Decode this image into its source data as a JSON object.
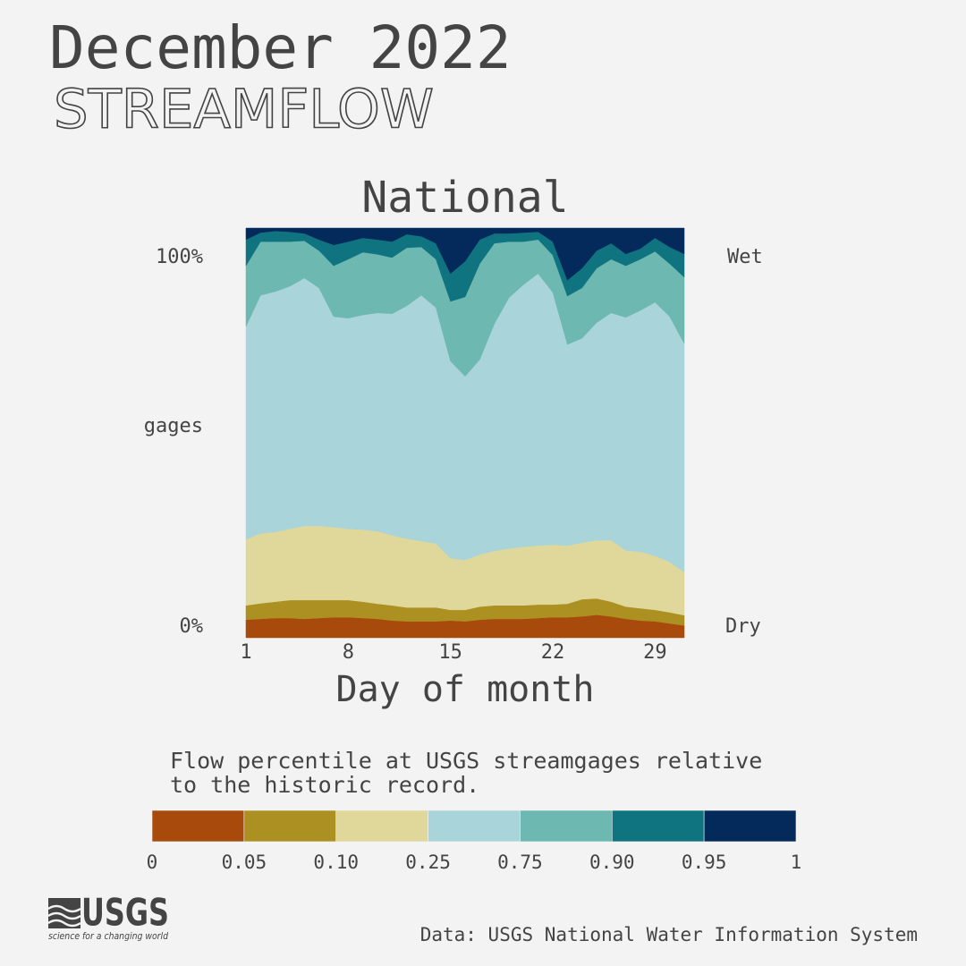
{
  "header": {
    "title": "December 2022",
    "subtitle": "STREAMFLOW"
  },
  "chart_data": {
    "type": "stacked_area",
    "title": "National",
    "x_label": "Day of month",
    "x": [
      1,
      2,
      3,
      4,
      5,
      6,
      7,
      8,
      9,
      10,
      11,
      12,
      13,
      14,
      15,
      16,
      17,
      18,
      19,
      20,
      21,
      22,
      23,
      24,
      25,
      26,
      27,
      28,
      29,
      30,
      31
    ],
    "xlim": [
      1,
      31
    ],
    "xticks": [
      1,
      8,
      15,
      22,
      29
    ],
    "ylim": [
      0,
      100
    ],
    "side_labels": {
      "left": [
        "100%",
        "gages",
        "0%"
      ],
      "right": [
        "Wet",
        "Dry"
      ]
    },
    "series": [
      {
        "color": "#a84a0c",
        "values": [
          4.4,
          4.6,
          4.8,
          4.8,
          4.6,
          4.8,
          5.0,
          5.0,
          4.8,
          4.6,
          4.2,
          4.0,
          4.0,
          4.0,
          4.2,
          4.0,
          4.4,
          4.6,
          4.6,
          4.6,
          4.8,
          5.0,
          5.0,
          5.2,
          5.6,
          5.2,
          4.6,
          4.2,
          4.0,
          3.5,
          3.0
        ]
      },
      {
        "color": "#ad9022",
        "values": [
          3.5,
          3.8,
          4.0,
          4.4,
          4.6,
          4.4,
          4.2,
          4.2,
          4.0,
          3.7,
          3.7,
          3.4,
          3.4,
          3.4,
          2.6,
          2.8,
          3.2,
          3.3,
          3.3,
          3.3,
          3.3,
          3.1,
          3.3,
          4.2,
          4.0,
          3.6,
          3.0,
          3.0,
          2.8,
          2.7,
          2.5
        ]
      },
      {
        "color": "#e0d89a",
        "values": [
          16.1,
          17.1,
          17.0,
          17.4,
          18.1,
          18.1,
          17.8,
          17.4,
          17.6,
          17.7,
          17.1,
          16.8,
          16.2,
          15.6,
          12.6,
          12.2,
          12.7,
          13.3,
          13.9,
          14.3,
          14.4,
          14.6,
          14.2,
          13.8,
          14.2,
          15.0,
          13.7,
          13.8,
          13.2,
          12.3,
          10.5
        ]
      },
      {
        "color": "#a8d4da",
        "values": [
          52.0,
          58.1,
          58.7,
          59.2,
          60.5,
          58.1,
          51.4,
          51.4,
          52.4,
          53.3,
          54.1,
          56.8,
          60.0,
          57.6,
          48.1,
          44.8,
          47.6,
          55.4,
          61.2,
          64.0,
          66.4,
          61.6,
          49.1,
          49.9,
          53.1,
          55.5,
          56.9,
          58.9,
          61.9,
          59.9,
          55.8
        ]
      },
      {
        "color": "#6db8b0",
        "values": [
          14.8,
          13.1,
          12.2,
          10.9,
          9.1,
          9.1,
          12.4,
          14.4,
          15.3,
          14.3,
          13.7,
          14.2,
          11.8,
          11.8,
          14.6,
          19.4,
          23.4,
          19.7,
          13.7,
          10.5,
          8.3,
          9.1,
          11.8,
          12.3,
          13.3,
          13.1,
          12.6,
          12.5,
          12.4,
          12.9,
          16.2
        ]
      },
      {
        "color": "#107480",
        "values": [
          6.4,
          2.2,
          2.6,
          2.4,
          1.8,
          2.7,
          5.1,
          4.3,
          3.5,
          3.6,
          3.9,
          3.3,
          2.6,
          3.9,
          6.8,
          8.7,
          5.9,
          2.4,
          2.0,
          2.2,
          1.9,
          3.3,
          3.9,
          4.8,
          4.3,
          3.9,
          2.9,
          2.6,
          3.3,
          4.1,
          5.7
        ]
      },
      {
        "color": "#032a5a",
        "values": [
          2.8,
          1.1,
          0.7,
          0.9,
          1.3,
          2.8,
          4.1,
          3.3,
          2.4,
          2.8,
          3.3,
          1.5,
          2.0,
          3.7,
          11.1,
          8.1,
          2.8,
          1.3,
          1.3,
          1.1,
          0.9,
          3.3,
          12.7,
          9.8,
          5.5,
          3.7,
          6.3,
          5.0,
          2.4,
          4.6,
          6.3
        ]
      }
    ],
    "legend": {
      "caption_lines": [
        "Flow percentile at USGS streamgages relative",
        "to the historic record."
      ],
      "ticks": [
        0,
        0.05,
        {
          "value": 0.1,
          "label": "0.10"
        },
        0.25,
        0.75,
        {
          "value": 0.9,
          "label": "0.90"
        },
        0.95,
        1
      ]
    }
  },
  "source": "Data: USGS National Water Information System",
  "logo": {
    "name": "USGS",
    "tagline": "science for a changing world"
  }
}
